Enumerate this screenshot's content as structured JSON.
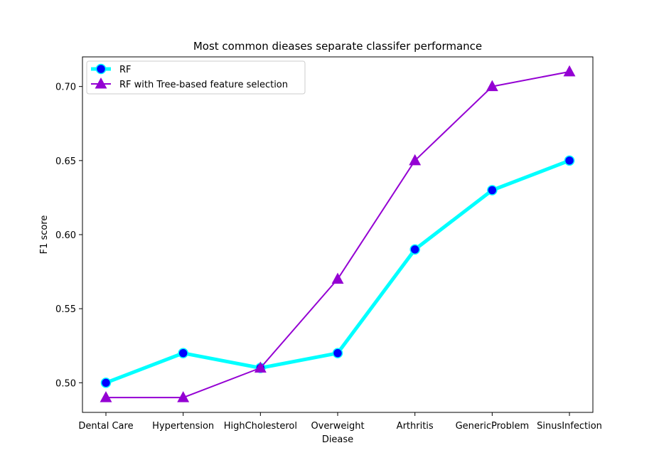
{
  "chart_data": {
    "type": "line",
    "title": "Most common dieases separate classifer performance",
    "xlabel": "Diease",
    "ylabel": "F1 score",
    "categories": [
      "Dental Care",
      "Hypertension",
      "HighCholesterol",
      "Overweight",
      "Arthritis",
      "GenericProblem",
      "SinusInfection"
    ],
    "ylim": [
      0.48,
      0.72
    ],
    "yticks": [
      "0.50",
      "0.55",
      "0.60",
      "0.65",
      "0.70"
    ],
    "grid": false,
    "legend_position": "top-left",
    "series": [
      {
        "name": "RF",
        "values": [
          0.5,
          0.52,
          0.51,
          0.52,
          0.59,
          0.63,
          0.65
        ],
        "line_color": "#00ffff",
        "marker": "circle",
        "marker_color": "#0000ff"
      },
      {
        "name": "RF with Tree-based feature selection",
        "values": [
          0.49,
          0.49,
          0.51,
          0.57,
          0.65,
          0.7,
          0.71
        ],
        "line_color": "#9400d3",
        "marker": "triangle",
        "marker_color": "#9400d3"
      }
    ]
  }
}
